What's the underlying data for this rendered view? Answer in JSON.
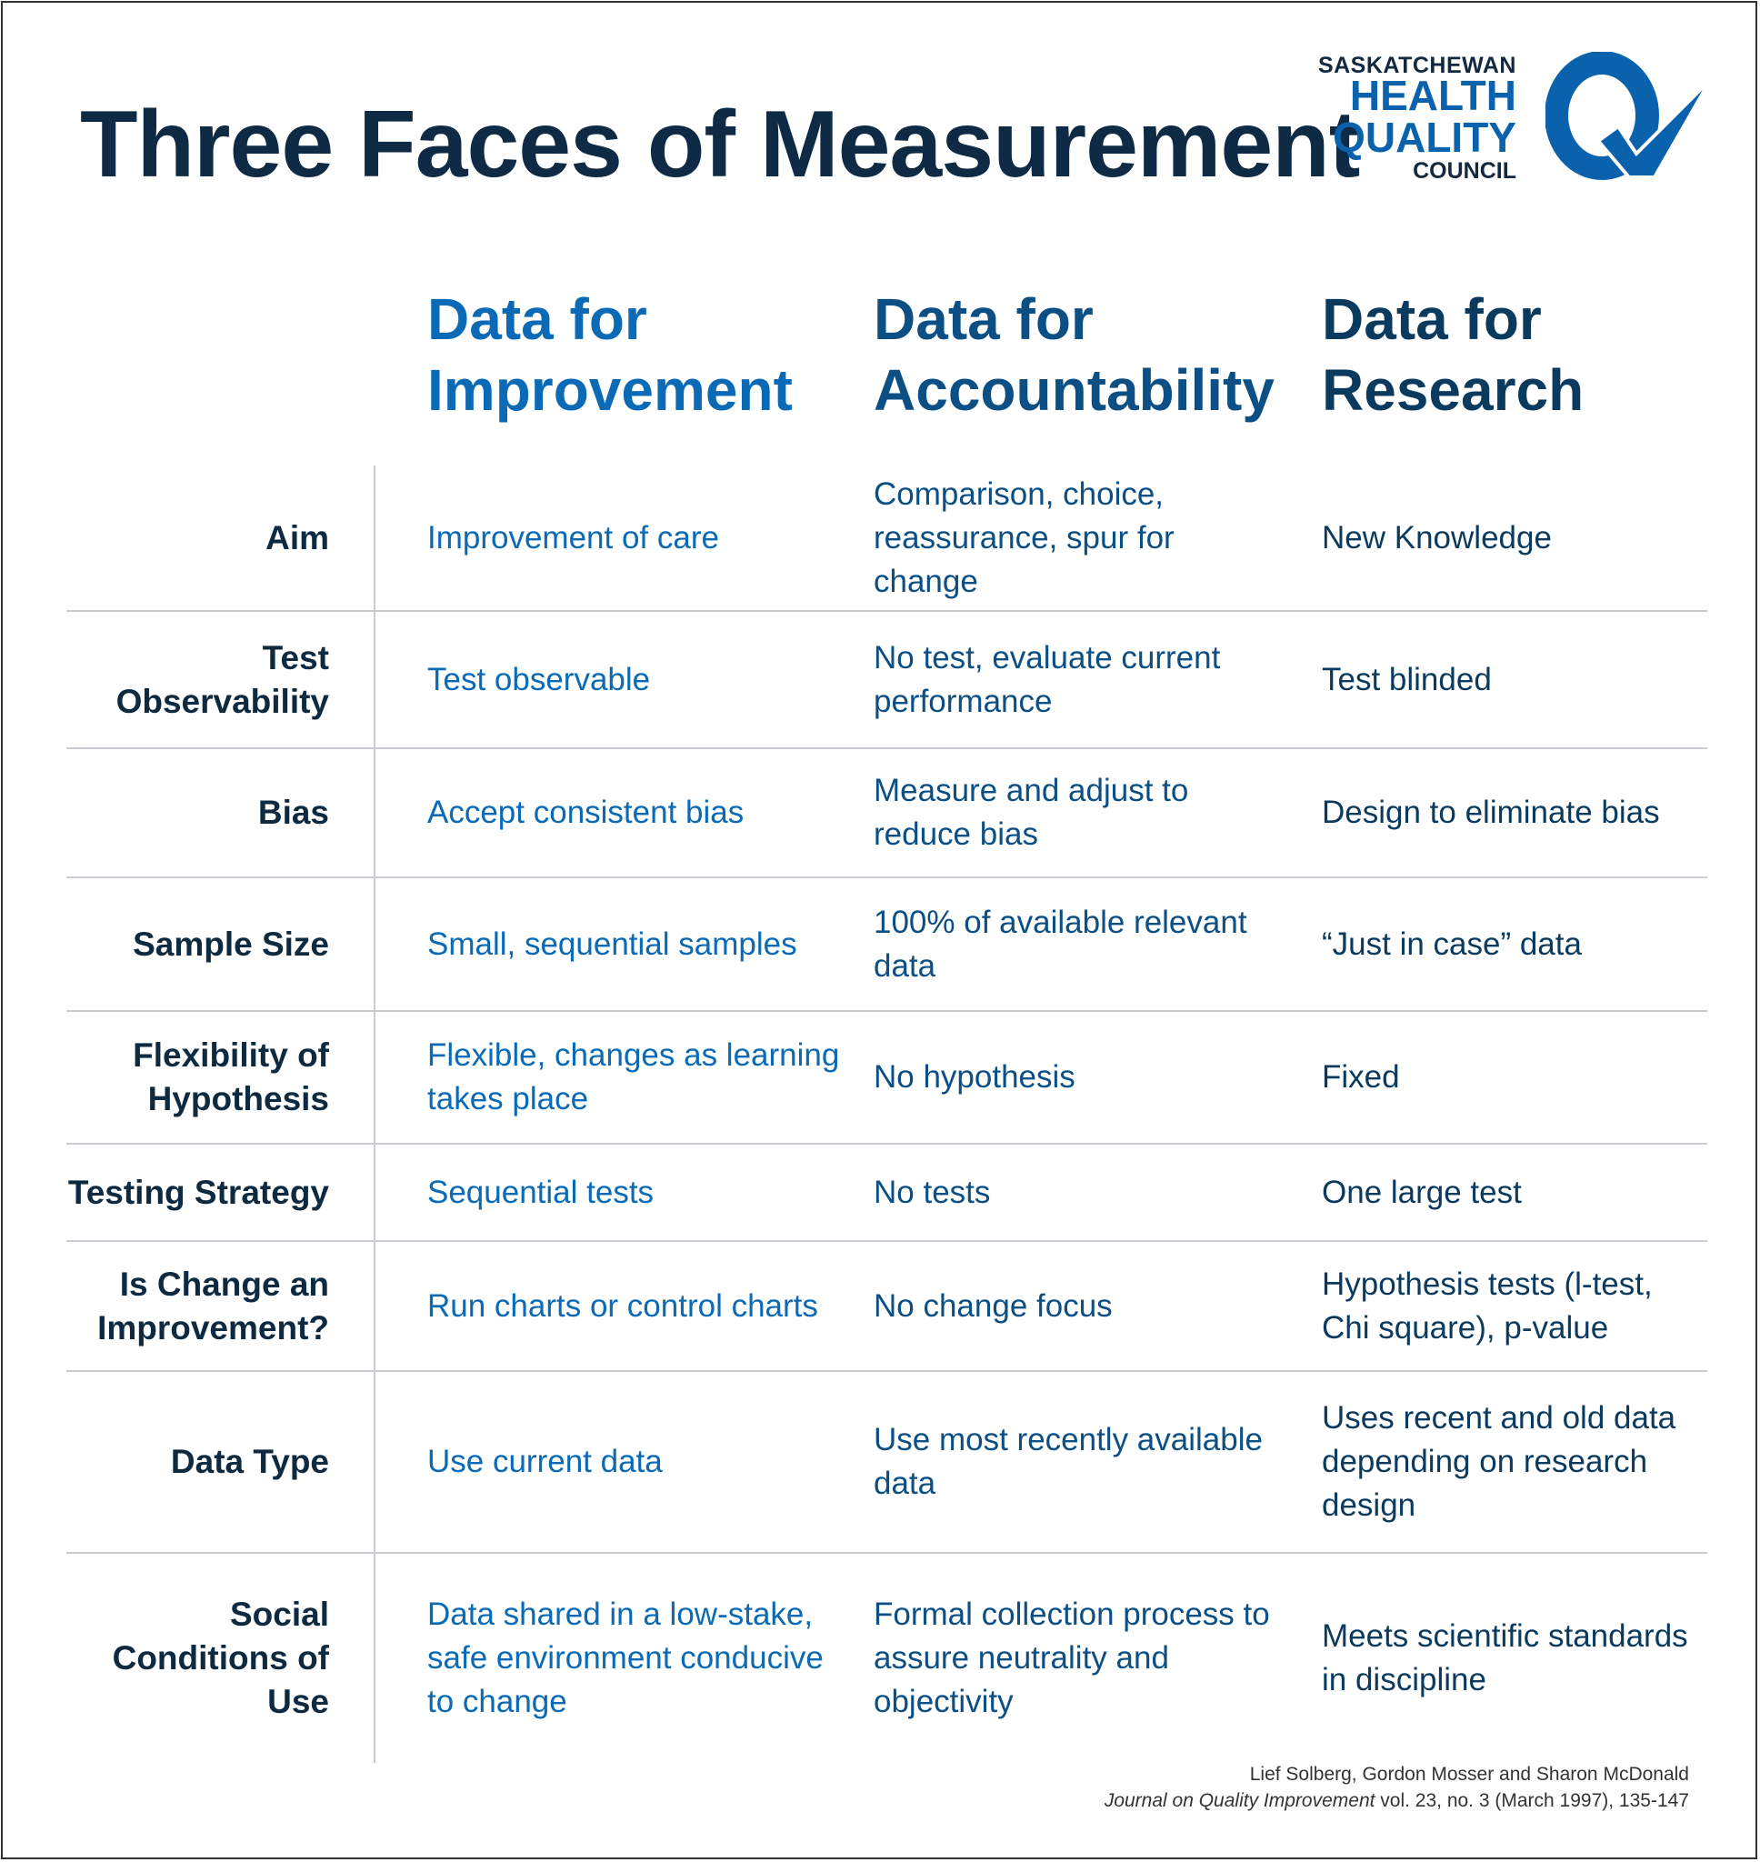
{
  "title": "Three Faces of Measurement",
  "logo": {
    "line1": "SASKATCHEWAN",
    "line2": "HEALTH",
    "line3": "QUALITY",
    "line4": "COUNCIL",
    "color": "#0a62ad"
  },
  "columns": [
    "Data for Improvement",
    "Data for Accountability",
    "Data for Research"
  ],
  "column_lines": [
    [
      "Data for",
      "Improvement"
    ],
    [
      "Data for",
      "Accountability"
    ],
    [
      "Data for",
      "Research"
    ]
  ],
  "colors": {
    "improvement": "#0a6ab5",
    "accountability": "#0b4f85",
    "research": "#0a3a5e",
    "labels": "#0d2a40"
  },
  "rows": [
    {
      "label": "Aim",
      "improvement": "Improvement of care",
      "accountability": "Comparison, choice, reassurance, spur for change",
      "research": "New Knowledge"
    },
    {
      "label": "Test Observability",
      "improvement": "Test observable",
      "accountability": "No test, evaluate current performance",
      "research": "Test blinded"
    },
    {
      "label": "Bias",
      "improvement": "Accept consistent bias",
      "accountability": "Measure and adjust to reduce bias",
      "research": "Design to eliminate bias"
    },
    {
      "label": "Sample Size",
      "improvement": "Small, sequential samples",
      "accountability": "100% of available relevant data",
      "research": "“Just in case” data"
    },
    {
      "label": "Flexibility of Hypothesis",
      "improvement": "Flexible, changes as learning takes place",
      "accountability": "No hypothesis",
      "research": "Fixed"
    },
    {
      "label": "Testing Strategy",
      "improvement": "Sequential tests",
      "accountability": "No tests",
      "research": "One large test"
    },
    {
      "label": "Is Change an Improvement?",
      "improvement": "Run charts or control charts",
      "accountability": "No change focus",
      "research": "Hypothesis tests (l-test, Chi square), p-value"
    },
    {
      "label": "Data Type",
      "improvement": "Use current data",
      "accountability": "Use most recently available data",
      "research": "Uses recent and old data depending on research design"
    },
    {
      "label": "Social Conditions of Use",
      "improvement": "Data shared in a low-stake, safe environment conducive to change",
      "accountability": "Formal collection process to assure neutrality and objectivity",
      "research": "Meets scientific standards in discipline"
    }
  ],
  "citation": {
    "authors": "Lief Solberg, Gordon Mosser and Sharon McDonald",
    "journal": "Journal on Quality Improvement",
    "details": " vol. 23, no. 3 (March 1997), 135-147"
  }
}
